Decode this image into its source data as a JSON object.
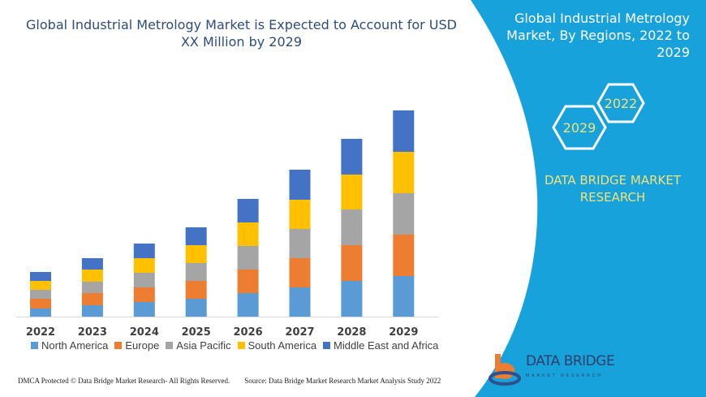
{
  "title": "Global Industrial Metrology Market is Expected to Account for USD XX Million by 2029",
  "side_panel": {
    "title": "Global Industrial Metrology Market, By Regions, 2022 to 2029",
    "hex_years": [
      "2029",
      "2022"
    ],
    "brand": "DATA BRIDGE MARKET RESEARCH",
    "logo_text": "DATA BRIDGE",
    "logo_sub": "MARKET RESEARCH",
    "color": "#17a2db"
  },
  "footer": {
    "left": "DMCA Protected © Data Bridge Market Research- All Rights Reserved.",
    "right": "Source: Data Bridge Market Research Market Analysis Study 2022"
  },
  "chart_data": {
    "type": "bar",
    "stacked": true,
    "title": "",
    "xlabel": "",
    "ylabel": "",
    "y_axis_shown": false,
    "grid": false,
    "legend_position": "bottom",
    "categories": [
      "2022",
      "2023",
      "2024",
      "2025",
      "2026",
      "2027",
      "2028",
      "2029"
    ],
    "series": [
      {
        "name": "North America",
        "color": "#5b9bd5",
        "values": [
          10,
          14,
          18,
          22,
          29,
          36,
          44,
          50
        ]
      },
      {
        "name": "Europe",
        "color": "#ed7d31",
        "values": [
          12,
          15,
          18,
          22,
          29,
          36,
          44,
          51
        ]
      },
      {
        "name": "Asia Pacific",
        "color": "#a5a5a5",
        "values": [
          11,
          14,
          18,
          22,
          29,
          36,
          44,
          51
        ]
      },
      {
        "name": "South America",
        "color": "#ffc000",
        "values": [
          11,
          15,
          18,
          22,
          29,
          36,
          43,
          51
        ]
      },
      {
        "name": "Middle East and Africa",
        "color": "#4472c4",
        "values": [
          11,
          14,
          18,
          22,
          29,
          37,
          44,
          51
        ]
      }
    ]
  }
}
